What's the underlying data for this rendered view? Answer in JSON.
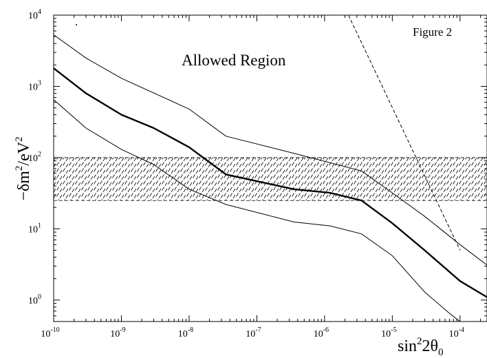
{
  "chart_data": {
    "type": "line",
    "figure_label": "Figure 2",
    "annotation": "Allowed Region",
    "ylabel": {
      "base": "−δm",
      "sup1": "2",
      "mid": "/eV",
      "sup2": "2"
    },
    "xlabel": {
      "base": "sin",
      "sup": "2",
      "mid": "2θ",
      "sub": "0"
    },
    "x_scale": "log",
    "y_scale": "log",
    "xlim": [
      1e-10,
      0.00025
    ],
    "ylim": [
      0.5,
      10000
    ],
    "x_ticks": [
      {
        "value": 1e-10,
        "base": "10",
        "exp": "-10"
      },
      {
        "value": 1e-09,
        "base": "10",
        "exp": "-9"
      },
      {
        "value": 1e-08,
        "base": "10",
        "exp": "-8"
      },
      {
        "value": 1e-07,
        "base": "10",
        "exp": "-7"
      },
      {
        "value": 1e-06,
        "base": "10",
        "exp": "-6"
      },
      {
        "value": 1e-05,
        "base": "10",
        "exp": "-5"
      },
      {
        "value": 0.0001,
        "base": "10",
        "exp": "-4"
      }
    ],
    "y_ticks": [
      {
        "value": 1,
        "base": "10",
        "exp": "0"
      },
      {
        "value": 10,
        "base": "10",
        "exp": "1"
      },
      {
        "value": 100,
        "base": "10",
        "exp": "2"
      },
      {
        "value": 1000,
        "base": "10",
        "exp": "3"
      },
      {
        "value": 10000,
        "base": "10",
        "exp": "4"
      }
    ],
    "band": {
      "ymin": 25,
      "ymax": 100,
      "style": "hatched",
      "color": "#000000"
    },
    "series": [
      {
        "role": "upper-bound",
        "stroke": "thin",
        "points": [
          [
            1e-10,
            5300
          ],
          [
            3e-10,
            2500
          ],
          [
            1e-09,
            1300
          ],
          [
            1e-08,
            480
          ],
          [
            3.5e-08,
            200
          ],
          [
            3.5e-07,
            115
          ],
          [
            3.5e-06,
            65
          ],
          [
            1e-05,
            32
          ],
          [
            3e-05,
            15
          ],
          [
            0.0001,
            6
          ],
          [
            0.00025,
            3.1
          ]
        ]
      },
      {
        "role": "best-fit",
        "stroke": "thick",
        "points": [
          [
            1e-10,
            1800
          ],
          [
            3e-10,
            800
          ],
          [
            1e-09,
            400
          ],
          [
            3e-09,
            260
          ],
          [
            1e-08,
            140
          ],
          [
            3.5e-08,
            58
          ],
          [
            3.5e-07,
            36
          ],
          [
            1.2e-06,
            32
          ],
          [
            3.5e-06,
            25
          ],
          [
            1e-05,
            12
          ],
          [
            3e-05,
            5
          ],
          [
            0.0001,
            1.85
          ],
          [
            0.00025,
            1.1
          ]
        ]
      },
      {
        "role": "lower-bound",
        "stroke": "thin",
        "points": [
          [
            1e-10,
            650
          ],
          [
            3e-10,
            260
          ],
          [
            1e-09,
            130
          ],
          [
            3e-09,
            80
          ],
          [
            1e-08,
            36
          ],
          [
            3.5e-08,
            22
          ],
          [
            3.5e-07,
            12.5
          ],
          [
            1.2e-06,
            11
          ],
          [
            3.5e-06,
            8.5
          ],
          [
            1e-05,
            4.2
          ],
          [
            3e-05,
            1.3
          ],
          [
            7e-05,
            0.65
          ],
          [
            0.0001,
            0.5
          ]
        ]
      },
      {
        "role": "dashed-limit",
        "stroke": "dashed",
        "points": [
          [
            2.25e-06,
            10000
          ],
          [
            0.0001,
            5
          ]
        ]
      }
    ],
    "grid": false,
    "legend": "none"
  }
}
